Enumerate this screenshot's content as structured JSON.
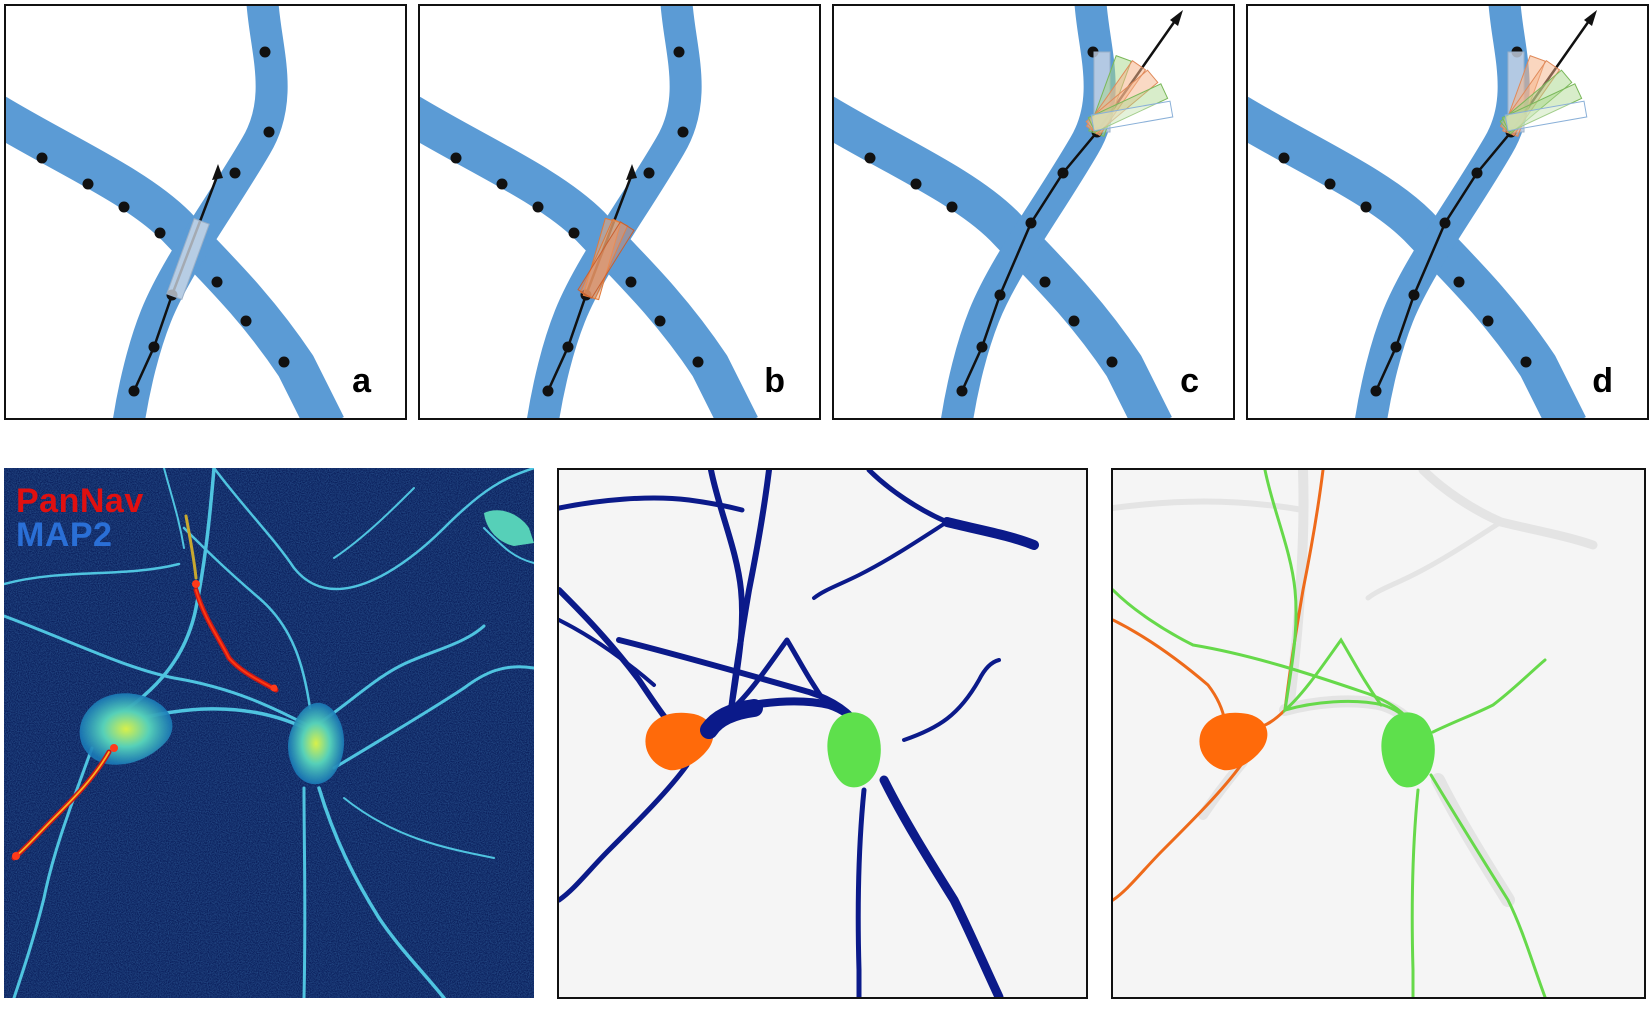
{
  "panels": {
    "a": {
      "label": "a"
    },
    "b": {
      "label": "b"
    },
    "c": {
      "label": "c"
    },
    "d": {
      "label": "d"
    }
  },
  "micrograph": {
    "stain1": "PanNav",
    "stain2": "MAP2",
    "stain1_color": "#e01010",
    "stain2_color": "#2a6fd6"
  },
  "colors": {
    "neurite_blue": "#5b9bd5",
    "skeleton_navy": "#0b1a8a",
    "soma_orange": "#ff6a0a",
    "soma_green": "#5ee04c",
    "trace_orange": "#ee6a1a",
    "trace_green": "#66d94a",
    "ghost_gray": "#e4e4e4"
  }
}
